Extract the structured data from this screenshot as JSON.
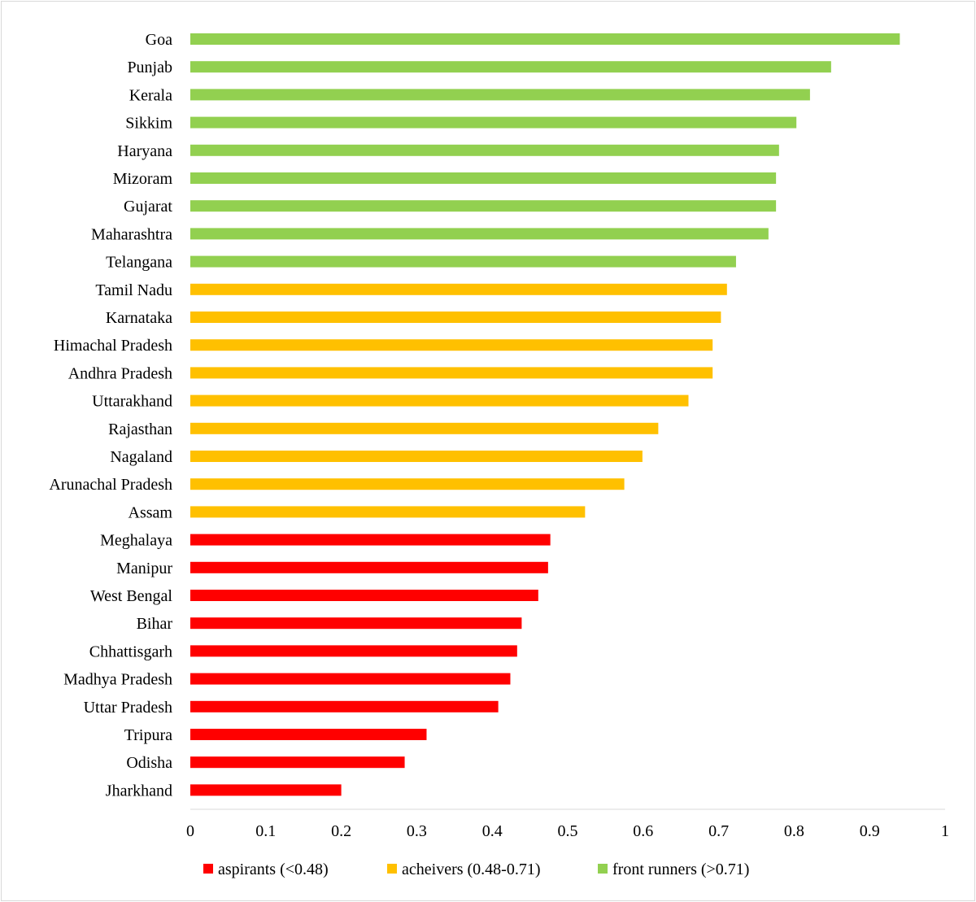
{
  "chart_data": {
    "type": "bar",
    "orientation": "horizontal",
    "categories": [
      "Goa",
      "Punjab",
      "Kerala",
      "Sikkim",
      "Haryana",
      "Mizoram",
      "Gujarat",
      "Maharashtra",
      "Telangana",
      "Tamil Nadu",
      "Karnataka",
      "Himachal Pradesh",
      "Andhra Pradesh",
      "Uttarakhand",
      "Rajasthan",
      "Nagaland",
      "Arunachal Pradesh",
      "Assam",
      "Meghalaya",
      "Manipur",
      "West Bengal",
      "Bihar",
      "Chhattisgarh",
      "Madhya Pradesh",
      "Uttar Pradesh",
      "Tripura",
      "Odisha",
      "Jharkhand"
    ],
    "values": [
      0.94,
      0.849,
      0.821,
      0.803,
      0.78,
      0.776,
      0.776,
      0.766,
      0.723,
      0.711,
      0.703,
      0.692,
      0.692,
      0.66,
      0.62,
      0.599,
      0.575,
      0.523,
      0.477,
      0.474,
      0.461,
      0.439,
      0.433,
      0.424,
      0.408,
      0.313,
      0.284,
      0.2
    ],
    "groups": [
      "front runners",
      "front runners",
      "front runners",
      "front runners",
      "front runners",
      "front runners",
      "front runners",
      "front runners",
      "front runners",
      "acheivers",
      "acheivers",
      "acheivers",
      "acheivers",
      "acheivers",
      "acheivers",
      "acheivers",
      "acheivers",
      "acheivers",
      "aspirants",
      "aspirants",
      "aspirants",
      "aspirants",
      "aspirants",
      "aspirants",
      "aspirants",
      "aspirants",
      "aspirants",
      "aspirants"
    ],
    "legend": [
      {
        "key": "aspirants",
        "label": "aspirants (<0.48)",
        "color": "#ff0000"
      },
      {
        "key": "acheivers",
        "label": "acheivers (0.48-0.71)",
        "color": "#ffc000"
      },
      {
        "key": "front runners",
        "label": "front runners (>0.71)",
        "color": "#92d050"
      }
    ],
    "xlim": [
      0,
      1
    ],
    "xticks": [
      "0",
      "0.1",
      "0.2",
      "0.3",
      "0.4",
      "0.5",
      "0.6",
      "0.7",
      "0.8",
      "0.9",
      "1"
    ],
    "title": "",
    "xlabel": "",
    "ylabel": "",
    "grid": false,
    "legend_position": "bottom"
  }
}
